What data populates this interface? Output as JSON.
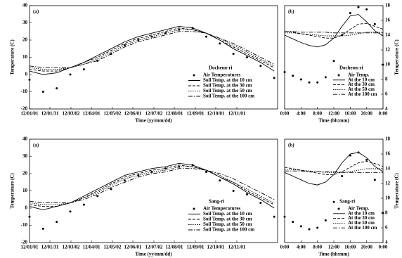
{
  "chart_data": [
    {
      "type": "line",
      "panel_label": "(a)",
      "annotation": "Docheon-ri",
      "x_label": "Time (yy/mm/dd)",
      "y_label": "Temperature (C)",
      "y_axis_side": "left",
      "xlim": [
        0,
        365
      ],
      "ylim": [
        -20,
        40
      ],
      "xticks": [
        {
          "value": 0,
          "label": "12/01/01"
        },
        {
          "value": 30,
          "label": "12/01/31"
        },
        {
          "value": 61,
          "label": "12/03/02"
        },
        {
          "value": 91,
          "label": "12/04/01"
        },
        {
          "value": 122,
          "label": "12/05/02"
        },
        {
          "value": 152,
          "label": "12/06/01"
        },
        {
          "value": 183,
          "label": "12/07/02"
        },
        {
          "value": 213,
          "label": "12/08/01"
        },
        {
          "value": 244,
          "label": "12/09/01"
        },
        {
          "value": 274,
          "label": "12/10/01"
        },
        {
          "value": 305,
          "label": "12/11/01"
        }
      ],
      "yticks": [
        -20,
        -10,
        0,
        10,
        20,
        30,
        40
      ],
      "x": [
        0,
        20,
        40,
        60,
        80,
        100,
        120,
        140,
        160,
        180,
        200,
        220,
        240,
        260,
        280,
        300,
        320,
        340,
        360
      ],
      "series": [
        {
          "name": "Air Temperatures",
          "style": "points",
          "color": "#000000",
          "values": [
            -3,
            -10,
            -8,
            0,
            3,
            8,
            12,
            17,
            20,
            22,
            24,
            26,
            27,
            22,
            18,
            12,
            10,
            5,
            -2
          ]
        },
        {
          "name": "Soil Temp. at the 10 cm",
          "style": "solid",
          "color": "#000000",
          "values": [
            2,
            0,
            1,
            4,
            7,
            11,
            15,
            19,
            22,
            24,
            26,
            28,
            27,
            24,
            20,
            15,
            11,
            7,
            2
          ]
        },
        {
          "name": "Soil Temp. at the 30 cm",
          "style": "dashed",
          "color": "#000000",
          "values": [
            3,
            2,
            2,
            4,
            7,
            10,
            14,
            18,
            21,
            23,
            25,
            27,
            26,
            24,
            20,
            16,
            12,
            8,
            4
          ]
        },
        {
          "name": "Soil Temp. at the 50 cm",
          "style": "dotted",
          "color": "#000000",
          "values": [
            4,
            3,
            3,
            4,
            6,
            9,
            13,
            17,
            20,
            22,
            24,
            26,
            26,
            24,
            21,
            17,
            13,
            9,
            5
          ]
        },
        {
          "name": "Soil Temp. at the 100 cm",
          "style": "dashdot",
          "color": "#000000",
          "values": [
            5,
            4,
            4,
            4,
            6,
            8,
            12,
            16,
            19,
            21,
            23,
            25,
            25,
            24,
            21,
            18,
            14,
            10,
            6
          ]
        }
      ]
    },
    {
      "type": "line",
      "panel_label": "(b)",
      "annotation": "Docheon-ri",
      "x_label": "Time (hh:mm)",
      "y_label": "Temperature (C)",
      "y_axis_side": "right",
      "xlim": [
        0,
        24
      ],
      "ylim": [
        4,
        18
      ],
      "xticks": [
        {
          "value": 0,
          "label": "0:00"
        },
        {
          "value": 4,
          "label": "4:00"
        },
        {
          "value": 8,
          "label": "8:00"
        },
        {
          "value": 12,
          "label": "12:00"
        },
        {
          "value": 16,
          "label": "16:00"
        },
        {
          "value": 20,
          "label": "20:00"
        },
        {
          "value": 24,
          "label": "0:00"
        }
      ],
      "yticks": [
        4,
        6,
        8,
        10,
        12,
        14,
        16,
        18
      ],
      "x": [
        0,
        2,
        4,
        6,
        8,
        10,
        12,
        14,
        16,
        18,
        20,
        22,
        24
      ],
      "series": [
        {
          "name": "Air Temp.",
          "style": "points",
          "color": "#000000",
          "values": [
            9,
            8.5,
            8,
            7.6,
            7.6,
            8.3,
            10.5,
            14,
            17,
            17.8,
            17.5,
            15.5,
            10
          ]
        },
        {
          "name": "At the 10 cm",
          "style": "solid",
          "color": "#000000",
          "values": [
            14,
            13.5,
            13,
            12.6,
            12.4,
            12.7,
            13.6,
            15.2,
            16.6,
            16.8,
            15.8,
            14.6,
            13.9
          ]
        },
        {
          "name": "At the 30 cm",
          "style": "dashed",
          "color": "#000000",
          "values": [
            14.5,
            14.4,
            14.2,
            14,
            13.8,
            13.6,
            13.6,
            14,
            14.8,
            15.5,
            15.6,
            15.2,
            14.8
          ]
        },
        {
          "name": "At the 50 cm",
          "style": "dotted",
          "color": "#000000",
          "values": [
            14.3,
            14.3,
            14.2,
            14.1,
            14,
            13.9,
            13.9,
            13.9,
            14,
            14.2,
            14.4,
            14.4,
            14.4
          ]
        },
        {
          "name": "At the 100 cm",
          "style": "dashdot",
          "color": "#000000",
          "values": [
            14.5,
            14.5,
            14.4,
            14.4,
            14.4,
            14.4,
            14.3,
            14.3,
            14.3,
            14.3,
            14.3,
            14.3,
            14.3
          ]
        }
      ]
    },
    {
      "type": "line",
      "panel_label": "(a)",
      "annotation": "Sang-ri",
      "x_label": "Time (yy/mm/dd)",
      "y_label": "Temperature (C)",
      "y_axis_side": "left",
      "xlim": [
        0,
        365
      ],
      "ylim": [
        -20,
        40
      ],
      "xticks": [
        {
          "value": 0,
          "label": "12/01/01"
        },
        {
          "value": 30,
          "label": "12/01/31"
        },
        {
          "value": 61,
          "label": "12/03/02"
        },
        {
          "value": 91,
          "label": "12/04/01"
        },
        {
          "value": 122,
          "label": "12/05/02"
        },
        {
          "value": 152,
          "label": "12/06/01"
        },
        {
          "value": 183,
          "label": "12/07/02"
        },
        {
          "value": 213,
          "label": "12/08/01"
        },
        {
          "value": 244,
          "label": "12/09/01"
        },
        {
          "value": 274,
          "label": "12/10/01"
        },
        {
          "value": 305,
          "label": "12/11/01"
        }
      ],
      "yticks": [
        -20,
        -10,
        0,
        10,
        20,
        30,
        40
      ],
      "x": [
        0,
        20,
        40,
        60,
        80,
        100,
        120,
        140,
        160,
        180,
        200,
        220,
        240,
        260,
        280,
        300,
        320,
        340,
        360
      ],
      "series": [
        {
          "name": "Air Temperatures",
          "style": "points",
          "color": "#000000",
          "values": [
            -5,
            -12,
            -8,
            -2,
            2,
            7,
            11,
            16,
            19,
            21,
            23,
            24,
            25,
            21,
            16,
            10,
            8,
            3,
            -5
          ]
        },
        {
          "name": "Soil Temp. at the 10 cm",
          "style": "solid",
          "color": "#000000",
          "values": [
            1,
            -1,
            1,
            3,
            7,
            11,
            15,
            19,
            21,
            23,
            24,
            26,
            25,
            22,
            18,
            14,
            9,
            5,
            0
          ]
        },
        {
          "name": "Soil Temp. at the 30 cm",
          "style": "dashed",
          "color": "#000000",
          "values": [
            2,
            1,
            1,
            3,
            6,
            10,
            14,
            18,
            20,
            22,
            23,
            25,
            24,
            22,
            18,
            15,
            10,
            6,
            2
          ]
        },
        {
          "name": "Soil Temp. at the 50 cm",
          "style": "dotted",
          "color": "#000000",
          "values": [
            3,
            2,
            2,
            3,
            6,
            9,
            13,
            17,
            19,
            21,
            22,
            24,
            24,
            22,
            19,
            15,
            11,
            7,
            3
          ]
        },
        {
          "name": "Soil Temp. at the 100 cm",
          "style": "dashdot",
          "color": "#000000",
          "values": [
            4,
            3,
            3,
            3,
            5,
            8,
            12,
            15,
            18,
            20,
            21,
            23,
            23,
            22,
            20,
            17,
            13,
            9,
            5
          ]
        }
      ]
    },
    {
      "type": "line",
      "panel_label": "(b)",
      "annotation": "Sang-ri",
      "x_label": "Time (hh:mm)",
      "y_label": "Temperature (C)",
      "y_axis_side": "right",
      "xlim": [
        0,
        24
      ],
      "ylim": [
        4,
        18
      ],
      "xticks": [
        {
          "value": 0,
          "label": "0:00"
        },
        {
          "value": 4,
          "label": "4:00"
        },
        {
          "value": 8,
          "label": "8:00"
        },
        {
          "value": 12,
          "label": "12:00"
        },
        {
          "value": 16,
          "label": "16:00"
        },
        {
          "value": 20,
          "label": "20:00"
        },
        {
          "value": 24,
          "label": "0:00"
        }
      ],
      "yticks": [
        4,
        6,
        8,
        10,
        12,
        14,
        16,
        18
      ],
      "x": [
        0,
        2,
        4,
        6,
        8,
        10,
        12,
        14,
        16,
        18,
        20,
        22,
        24
      ],
      "series": [
        {
          "name": "Air Temp.",
          "style": "points",
          "color": "#000000",
          "values": [
            7.5,
            6.8,
            6.2,
            5.8,
            6,
            7,
            9.5,
            13,
            15.8,
            16.2,
            15.2,
            12.5,
            8
          ]
        },
        {
          "name": "At the 10 cm",
          "style": "solid",
          "color": "#000000",
          "values": [
            13.5,
            13,
            12.5,
            12,
            11.8,
            12.2,
            13.2,
            14.8,
            16,
            16.2,
            15.5,
            14.3,
            13.6
          ]
        },
        {
          "name": "At the 30 cm",
          "style": "dashed",
          "color": "#000000",
          "values": [
            14.2,
            14,
            13.8,
            13.6,
            13.4,
            13.2,
            13.2,
            13.6,
            14.2,
            14.8,
            15,
            14.7,
            14.3
          ]
        },
        {
          "name": "At the 50 cm",
          "style": "dotted",
          "color": "#000000",
          "values": [
            13.9,
            13.9,
            13.8,
            13.7,
            13.6,
            13.5,
            13.5,
            13.5,
            13.6,
            13.8,
            14,
            14,
            14
          ]
        },
        {
          "name": "At the 100 cm",
          "style": "dashdot",
          "color": "#000000",
          "values": [
            13.7,
            13.7,
            13.7,
            13.6,
            13.6,
            13.6,
            13.6,
            13.5,
            13.5,
            13.5,
            13.5,
            13.5,
            13.5
          ]
        }
      ]
    }
  ]
}
